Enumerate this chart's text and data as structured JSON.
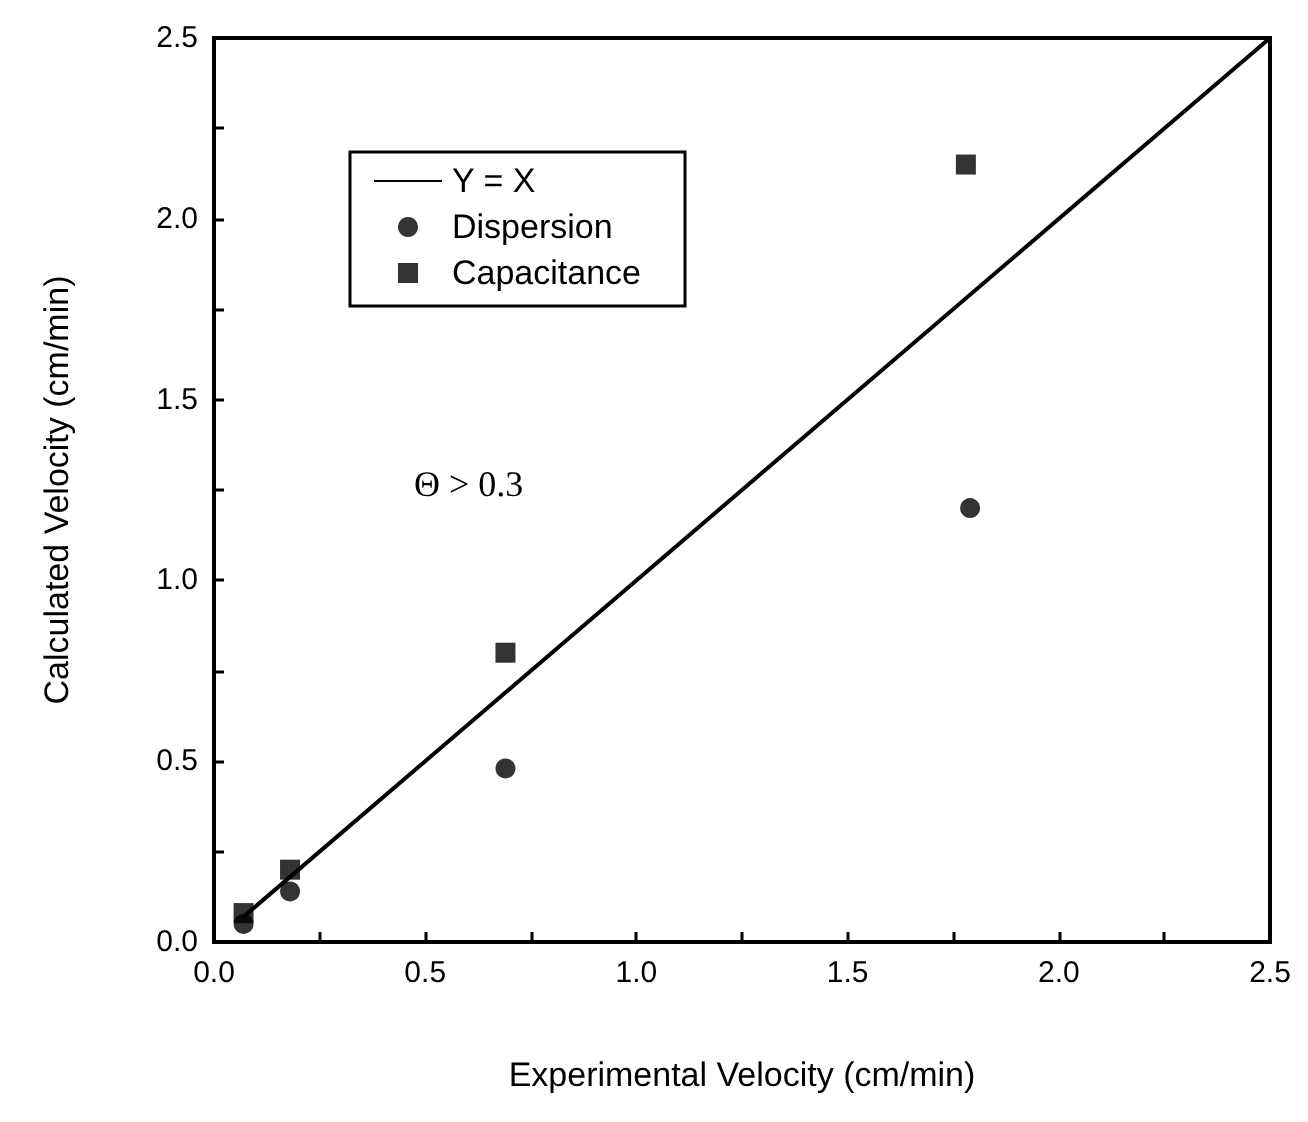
{
  "chart_data": {
    "type": "scatter",
    "xlabel": "Experimental Velocity (cm/min)",
    "ylabel": "Calculated Velocity (cm/min)",
    "annotations": [
      "Θ > 0.3"
    ],
    "series": [
      {
        "name": "Y = X",
        "type": "line",
        "color": "#000000",
        "marker": "none",
        "line_style": "solid",
        "x": [
          0.07,
          2.5
        ],
        "values": [
          0.07,
          2.5
        ]
      },
      {
        "name": "Dispersion",
        "color": "#000000",
        "marker": "circle",
        "x": [
          0.07,
          0.18,
          0.69,
          1.79
        ],
        "values": [
          0.05,
          0.14,
          0.48,
          1.2
        ]
      },
      {
        "name": "Capacitance",
        "color": "#000000",
        "marker": "square",
        "x": [
          0.07,
          0.18,
          0.69,
          1.78
        ],
        "values": [
          0.08,
          0.2,
          0.8,
          2.15
        ]
      }
    ],
    "xlim": [
      0,
      2.5
    ],
    "ylim": [
      0,
      2.5
    ],
    "xticks": [
      {
        "value": 0,
        "label": "0.0"
      },
      {
        "value": 0.25,
        "label": null
      },
      {
        "value": 0.5,
        "label": "0.5"
      },
      {
        "value": 0.75,
        "label": null
      },
      {
        "value": 1,
        "label": "1.0"
      },
      {
        "value": 1.25,
        "label": null
      },
      {
        "value": 1.5,
        "label": "1.5"
      },
      {
        "value": 1.75,
        "label": null
      },
      {
        "value": 2,
        "label": "2.0"
      },
      {
        "value": 2.25,
        "label": null
      },
      {
        "value": 2.5,
        "label": "2.5"
      }
    ],
    "yticks": [
      {
        "value": 0,
        "label": "0.0"
      },
      {
        "value": 0.25,
        "label": null
      },
      {
        "value": 0.5,
        "label": "0.5"
      },
      {
        "value": 0.75,
        "label": null
      },
      {
        "value": 1,
        "label": "1.0"
      },
      {
        "value": 1.25,
        "label": null
      },
      {
        "value": 1.5,
        "label": "1.5"
      },
      {
        "value": 1.75,
        "label": null
      },
      {
        "value": 2,
        "label": "2.0"
      },
      {
        "value": 2.25,
        "label": null
      },
      {
        "value": 2.5,
        "label": "2.5"
      }
    ],
    "grid": false,
    "legend": "top left"
  }
}
